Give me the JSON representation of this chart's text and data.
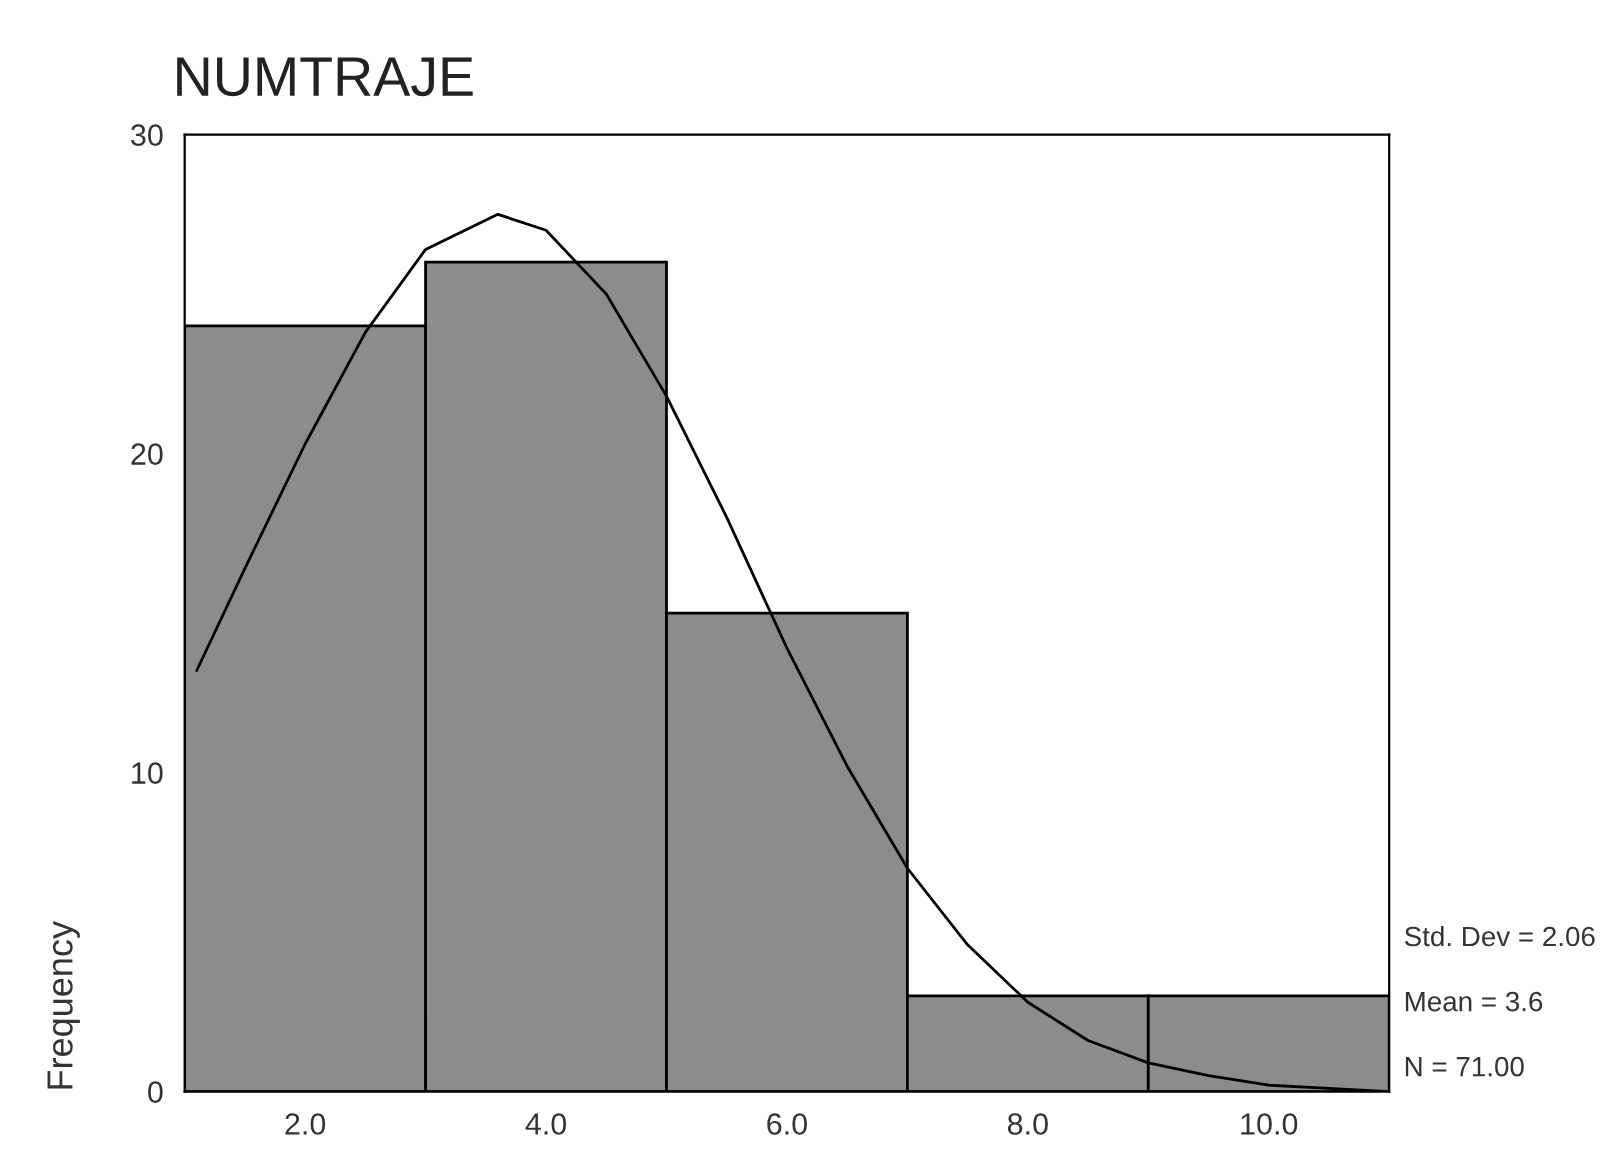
{
  "chart_data": {
    "type": "histogram",
    "title": "NUMTRAJE",
    "ylabel": "Frequency",
    "bins": [
      1,
      3,
      5,
      7,
      9,
      11
    ],
    "series": [
      {
        "type": "histogram",
        "color": "#8c8c8c",
        "values": [
          24,
          26,
          15,
          3,
          3
        ]
      },
      {
        "type": "line",
        "color": "#000000",
        "x": [
          1.1,
          1.5,
          2,
          2.5,
          3,
          3.6,
          4,
          4.5,
          5,
          5.5,
          6,
          6.5,
          7,
          7.5,
          8,
          8.5,
          9,
          9.5,
          10,
          10.5,
          11
        ],
        "values": [
          13.2,
          16.4,
          20.3,
          23.8,
          26.4,
          27.5,
          27.0,
          25.0,
          21.8,
          18.0,
          13.9,
          10.2,
          7.0,
          4.6,
          2.8,
          1.6,
          0.9,
          0.5,
          0.2,
          0.1,
          0.0
        ]
      }
    ],
    "xlim": [
      1,
      11
    ],
    "ylim": [
      0,
      30
    ],
    "xticks": [
      {
        "value": 2,
        "label": "2.0"
      },
      {
        "value": 4,
        "label": "4.0"
      },
      {
        "value": 6,
        "label": "6.0"
      },
      {
        "value": 8,
        "label": "8.0"
      },
      {
        "value": 10,
        "label": "10.0"
      }
    ],
    "yticks": [
      0,
      10,
      20,
      30
    ],
    "annotations": [
      "Std. Dev = 2.06",
      "Mean = 3.6",
      "N = 71.00"
    ],
    "grid": false,
    "legend": false
  }
}
